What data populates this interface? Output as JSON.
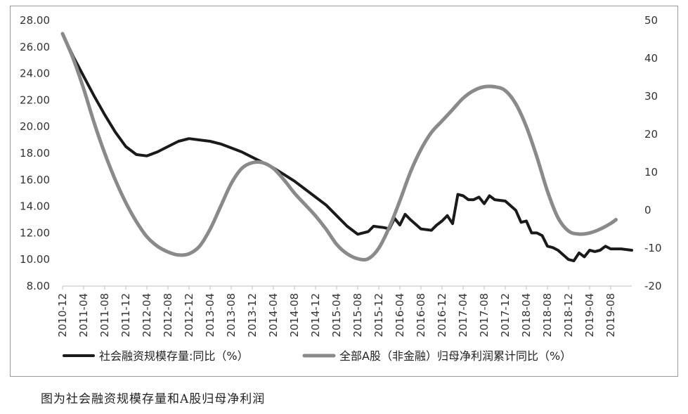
{
  "caption": "图为社会融资规模存量和A股归母净利润",
  "chart_data": {
    "type": "line",
    "legend_position": "bottom",
    "grid": false,
    "x_ticks": [
      "2010-12",
      "2011-04",
      "2011-08",
      "2011-12",
      "2012-04",
      "2012-08",
      "2012-12",
      "2013-04",
      "2013-08",
      "2013-12",
      "2014-04",
      "2014-08",
      "2014-12",
      "2015-04",
      "2015-08",
      "2015-12",
      "2016-04",
      "2016-08",
      "2016-12",
      "2017-04",
      "2017-08",
      "2017-12",
      "2018-04",
      "2018-08",
      "2018-12",
      "2019-04",
      "2019-08"
    ],
    "y_left": {
      "range": [
        8,
        28
      ],
      "ticks": [
        "8.00",
        "10.00",
        "12.00",
        "14.00",
        "16.00",
        "18.00",
        "20.00",
        "22.00",
        "24.00",
        "26.00",
        "28.00"
      ]
    },
    "y_right": {
      "range": [
        -20,
        50
      ],
      "ticks": [
        "-20",
        "-10",
        "0",
        "10",
        "20",
        "30",
        "40",
        "50"
      ]
    },
    "series": [
      {
        "name": "社会融资规模存量:同比（%）",
        "axis": "left",
        "color": "#1a1a1a",
        "points": [
          [
            "2010-12",
            27.0
          ],
          [
            "2011-02",
            25.3
          ],
          [
            "2011-04",
            23.8
          ],
          [
            "2011-06",
            22.3
          ],
          [
            "2011-08",
            20.9
          ],
          [
            "2011-10",
            19.6
          ],
          [
            "2011-12",
            18.5
          ],
          [
            "2012-02",
            17.9
          ],
          [
            "2012-04",
            17.8
          ],
          [
            "2012-06",
            18.1
          ],
          [
            "2012-08",
            18.5
          ],
          [
            "2012-10",
            18.9
          ],
          [
            "2012-12",
            19.1
          ],
          [
            "2013-02",
            19.0
          ],
          [
            "2013-04",
            18.9
          ],
          [
            "2013-06",
            18.7
          ],
          [
            "2013-08",
            18.4
          ],
          [
            "2013-10",
            18.1
          ],
          [
            "2013-12",
            17.7
          ],
          [
            "2014-02",
            17.3
          ],
          [
            "2014-04",
            16.9
          ],
          [
            "2014-06",
            16.4
          ],
          [
            "2014-08",
            15.9
          ],
          [
            "2014-10",
            15.3
          ],
          [
            "2014-12",
            14.7
          ],
          [
            "2015-02",
            14.1
          ],
          [
            "2015-04",
            13.3
          ],
          [
            "2015-06",
            12.5
          ],
          [
            "2015-08",
            11.9
          ],
          [
            "2015-10",
            12.1
          ],
          [
            "2015-11",
            12.5
          ],
          [
            "2016-01",
            12.4
          ],
          [
            "2016-02",
            12.3
          ],
          [
            "2016-03",
            13.1
          ],
          [
            "2016-04",
            12.6
          ],
          [
            "2016-05",
            13.4
          ],
          [
            "2016-06",
            13.0
          ],
          [
            "2016-08",
            12.3
          ],
          [
            "2016-10",
            12.2
          ],
          [
            "2016-11",
            12.6
          ],
          [
            "2016-12",
            12.9
          ],
          [
            "2017-01",
            13.3
          ],
          [
            "2017-02",
            12.7
          ],
          [
            "2017-03",
            14.9
          ],
          [
            "2017-04",
            14.8
          ],
          [
            "2017-05",
            14.5
          ],
          [
            "2017-06",
            14.5
          ],
          [
            "2017-07",
            14.7
          ],
          [
            "2017-08",
            14.2
          ],
          [
            "2017-09",
            14.8
          ],
          [
            "2017-10",
            14.5
          ],
          [
            "2017-12",
            14.4
          ],
          [
            "2018-02",
            13.7
          ],
          [
            "2018-03",
            12.8
          ],
          [
            "2018-04",
            12.9
          ],
          [
            "2018-05",
            12.0
          ],
          [
            "2018-06",
            12.0
          ],
          [
            "2018-07",
            11.8
          ],
          [
            "2018-08",
            11.0
          ],
          [
            "2018-09",
            10.9
          ],
          [
            "2018-10",
            10.7
          ],
          [
            "2018-12",
            10.0
          ],
          [
            "2019-01",
            9.9
          ],
          [
            "2019-02",
            10.5
          ],
          [
            "2019-03",
            10.2
          ],
          [
            "2019-04",
            10.7
          ],
          [
            "2019-05",
            10.6
          ],
          [
            "2019-06",
            10.7
          ],
          [
            "2019-07",
            11.0
          ],
          [
            "2019-08",
            10.8
          ],
          [
            "2019-10",
            10.8
          ],
          [
            "2019-12",
            10.7
          ]
        ]
      },
      {
        "name": "全部A股（非金融）归母净利润累计同比（%）",
        "axis": "right",
        "color": "#8a8a8a",
        "points": [
          [
            "2010-12",
            46.5
          ],
          [
            "2011-02",
            40.0
          ],
          [
            "2011-04",
            32.0
          ],
          [
            "2011-06",
            23.0
          ],
          [
            "2011-08",
            15.0
          ],
          [
            "2011-10",
            8.0
          ],
          [
            "2011-12",
            2.0
          ],
          [
            "2012-02",
            -3.0
          ],
          [
            "2012-04",
            -7.0
          ],
          [
            "2012-06",
            -9.5
          ],
          [
            "2012-08",
            -11.0
          ],
          [
            "2012-10",
            -11.8
          ],
          [
            "2012-12",
            -11.5
          ],
          [
            "2013-02",
            -9.5
          ],
          [
            "2013-04",
            -5.0
          ],
          [
            "2013-06",
            1.0
          ],
          [
            "2013-08",
            7.0
          ],
          [
            "2013-10",
            11.0
          ],
          [
            "2013-12",
            12.5
          ],
          [
            "2014-02",
            12.5
          ],
          [
            "2014-04",
            11.0
          ],
          [
            "2014-06",
            8.0
          ],
          [
            "2014-08",
            4.5
          ],
          [
            "2014-10",
            1.5
          ],
          [
            "2014-12",
            -1.5
          ],
          [
            "2015-02",
            -5.0
          ],
          [
            "2015-04",
            -9.0
          ],
          [
            "2015-06",
            -11.5
          ],
          [
            "2015-08",
            -12.8
          ],
          [
            "2015-10",
            -12.8
          ],
          [
            "2015-12",
            -10.0
          ],
          [
            "2016-02",
            -4.5
          ],
          [
            "2016-04",
            2.5
          ],
          [
            "2016-06",
            10.0
          ],
          [
            "2016-08",
            16.0
          ],
          [
            "2016-10",
            20.5
          ],
          [
            "2016-12",
            23.5
          ],
          [
            "2017-02",
            26.5
          ],
          [
            "2017-04",
            29.5
          ],
          [
            "2017-06",
            31.5
          ],
          [
            "2017-08",
            32.5
          ],
          [
            "2017-10",
            32.5
          ],
          [
            "2017-12",
            31.5
          ],
          [
            "2018-02",
            28.0
          ],
          [
            "2018-04",
            22.0
          ],
          [
            "2018-06",
            14.0
          ],
          [
            "2018-08",
            5.0
          ],
          [
            "2018-10",
            -2.0
          ],
          [
            "2018-12",
            -5.5
          ],
          [
            "2019-02",
            -6.3
          ],
          [
            "2019-04",
            -6.0
          ],
          [
            "2019-06",
            -5.0
          ],
          [
            "2019-08",
            -3.5
          ],
          [
            "2019-09",
            -2.5
          ]
        ]
      }
    ]
  }
}
